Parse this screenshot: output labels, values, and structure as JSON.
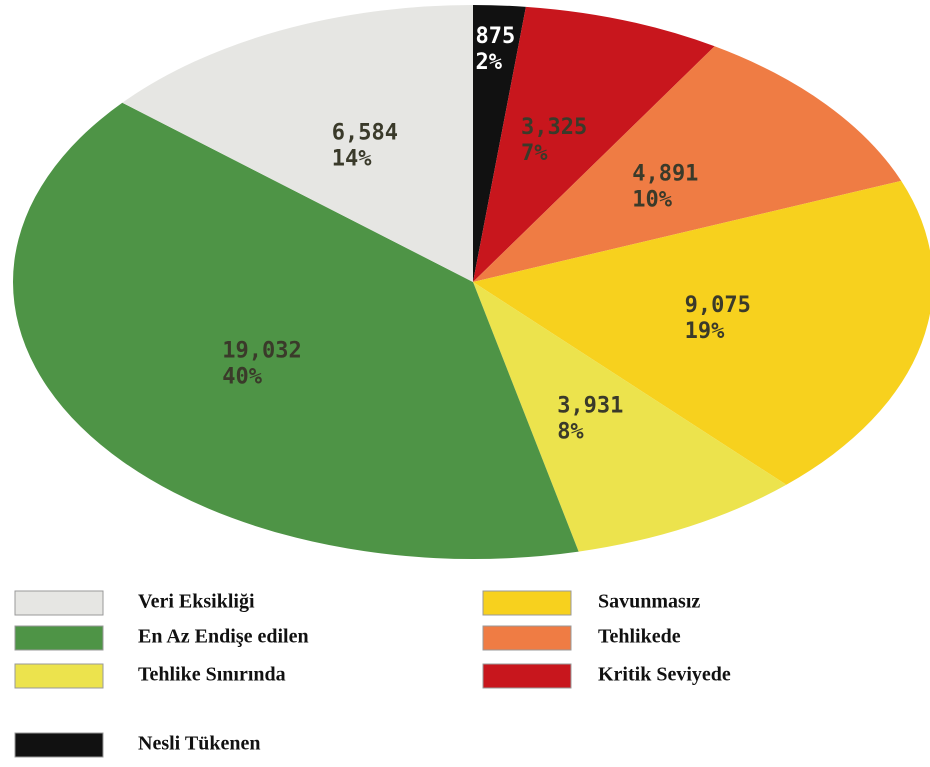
{
  "chart_data": {
    "type": "pie",
    "categories": [
      "Nesli Tükenen",
      "Kritik Seviyede",
      "Tehlikede",
      "Savunmasız",
      "Tehlike Sınırında",
      "En Az Endişe edilen",
      "Veri Eksikliği"
    ],
    "values": [
      875,
      3325,
      4891,
      9075,
      3931,
      19032,
      6584
    ],
    "value_labels": [
      "875",
      "3,325",
      "4,891",
      "9,075",
      "3,931",
      "19,032",
      "6,584"
    ],
    "percents": [
      2,
      7,
      10,
      19,
      8,
      40,
      14
    ],
    "percent_labels": [
      "2%",
      "7%",
      "10%",
      "19%",
      "8%",
      "40%",
      "14%"
    ],
    "colors": [
      "#111111",
      "#c8161d",
      "#ef7c44",
      "#f7d11e",
      "#ece34d",
      "#4e9446",
      "#e6e6e3"
    ],
    "legend": true
  }
}
